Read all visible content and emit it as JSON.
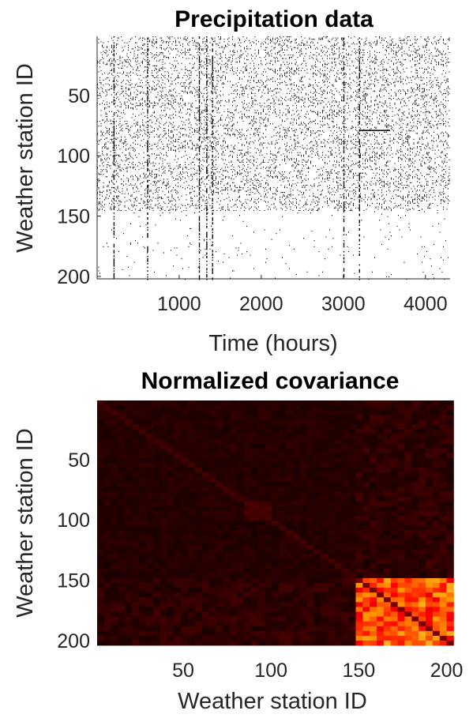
{
  "chart_data": [
    {
      "type": "heatmap",
      "title": "Precipitation data",
      "xlabel": "Time (hours)",
      "ylabel": "Weather station ID",
      "xlim": [
        1,
        4300
      ],
      "ylim": [
        1,
        202
      ],
      "y_reversed": true,
      "xticks": [
        1000,
        2000,
        3000,
        4000
      ],
      "yticks": [
        50,
        100,
        150,
        200
      ],
      "colormap": "binary (white = no rain, black = rain)",
      "colors": {
        "background": "#ffffff",
        "mark": "#000000"
      },
      "station_groups": [
        {
          "stations": [
            1,
            145
          ],
          "density": "high"
        },
        {
          "stations": [
            146,
            202
          ],
          "density": "low, vertical streaks"
        }
      ],
      "dense_columns_hours": [
        200,
        610,
        1240,
        1330,
        1400,
        3000,
        3190
      ],
      "horizontal_streak": {
        "station": 79,
        "hours": [
          3200,
          3570
        ]
      },
      "grid": false,
      "legend": "none"
    },
    {
      "type": "heatmap",
      "title": "Normalized covariance",
      "xlabel": "Weather station ID",
      "ylabel": "Weather station ID",
      "xlim": [
        1,
        202
      ],
      "ylim": [
        1,
        202
      ],
      "y_reversed": true,
      "xticks": [
        50,
        100,
        150,
        200
      ],
      "yticks": [
        50,
        100,
        150,
        200
      ],
      "colormap": "hot",
      "colors": {
        "low": "#1a0000",
        "mid": "#c01000",
        "high": "#ffd040"
      },
      "blocks": [
        {
          "rows": [
            1,
            145
          ],
          "cols": [
            1,
            145
          ],
          "level": "low"
        },
        {
          "rows": [
            146,
            202
          ],
          "cols": [
            146,
            202
          ],
          "level": "high"
        },
        {
          "rows": [
            85,
            100
          ],
          "cols": [
            85,
            100
          ],
          "level": "slightly elevated"
        }
      ],
      "diagonal": "dark line across the high block",
      "grid": false,
      "legend": "none"
    }
  ]
}
